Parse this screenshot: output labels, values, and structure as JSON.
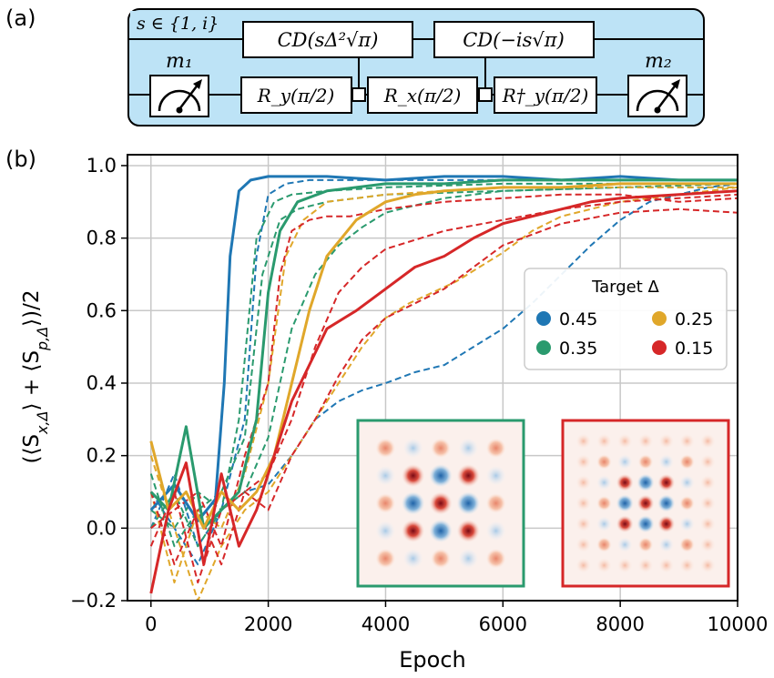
{
  "panel_a": {
    "label": "(a)",
    "s_set": "s ∈ {1, i}",
    "m1": "m₁",
    "m2": "m₂",
    "cd1": "CD(sΔ²√π)",
    "cd2": "CD(−is√π)",
    "ry": "R_y(π/2)",
    "rx": "R_x(π/2)",
    "rydag": "R†_y(π/2)"
  },
  "panel_b": {
    "label": "(b)"
  },
  "colors": {
    "blue": "#1f77b4",
    "green": "#2a9a6e",
    "yellow": "#e0a72a",
    "red": "#d62728",
    "circuit_bg": "#bde3f6"
  },
  "chart_data": {
    "type": "line",
    "xlabel": "Epoch",
    "ylabel": "(⟨S_{x,Δ}⟩ + ⟨S_{p,Δ}⟩)/2",
    "xlim": [
      -400,
      10000
    ],
    "ylim": [
      -0.2,
      1.03
    ],
    "xticks": [
      0,
      2000,
      4000,
      6000,
      8000,
      10000
    ],
    "xtick_labels": [
      "0",
      "2000",
      "4000",
      "6000",
      "8000",
      "10000"
    ],
    "yticks": [
      -0.2,
      0.0,
      0.2,
      0.4,
      0.6,
      0.8,
      1.0
    ],
    "ytick_labels": [
      "−0.2",
      "0.0",
      "0.2",
      "0.4",
      "0.6",
      "0.8",
      "1.0"
    ],
    "grid": true,
    "legend": {
      "title": "Target Δ",
      "placement": "center-right",
      "entries": [
        "0.45",
        "0.35",
        "0.25",
        "0.15"
      ]
    },
    "series": [
      {
        "name": "0.45",
        "style": "solid",
        "x": [
          0,
          400,
          800,
          1100,
          1250,
          1350,
          1500,
          1700,
          2000,
          3000,
          4000,
          5000,
          6000,
          7000,
          8000,
          9000,
          10000
        ],
        "y": [
          0.05,
          0.12,
          0.02,
          0.08,
          0.4,
          0.75,
          0.93,
          0.96,
          0.97,
          0.97,
          0.96,
          0.97,
          0.97,
          0.96,
          0.97,
          0.96,
          0.96
        ]
      },
      {
        "name": "0.35",
        "style": "solid",
        "x": [
          0,
          300,
          600,
          900,
          1200,
          1500,
          1800,
          2000,
          2200,
          2500,
          3000,
          4000,
          5000,
          6000,
          8000,
          10000
        ],
        "y": [
          0.1,
          0.05,
          0.28,
          0.0,
          0.05,
          0.1,
          0.3,
          0.65,
          0.82,
          0.9,
          0.93,
          0.95,
          0.95,
          0.96,
          0.96,
          0.96
        ]
      },
      {
        "name": "0.25",
        "style": "solid",
        "x": [
          0,
          300,
          600,
          900,
          1200,
          1500,
          1800,
          2100,
          2400,
          2700,
          3000,
          3500,
          4000,
          4500,
          5000,
          6000,
          7000,
          8000,
          10000
        ],
        "y": [
          0.24,
          0.05,
          0.1,
          0.0,
          0.1,
          0.05,
          0.1,
          0.2,
          0.4,
          0.6,
          0.75,
          0.85,
          0.9,
          0.92,
          0.93,
          0.94,
          0.94,
          0.95,
          0.95
        ]
      },
      {
        "name": "0.15",
        "style": "solid",
        "x": [
          0,
          300,
          600,
          900,
          1200,
          1500,
          1800,
          2100,
          2400,
          2700,
          3000,
          3500,
          4000,
          4500,
          5000,
          5500,
          6000,
          6500,
          7000,
          7500,
          8000,
          9000,
          10000
        ],
        "y": [
          -0.18,
          0.05,
          0.18,
          -0.1,
          0.15,
          -0.05,
          0.05,
          0.2,
          0.35,
          0.45,
          0.55,
          0.6,
          0.66,
          0.72,
          0.75,
          0.8,
          0.84,
          0.86,
          0.88,
          0.9,
          0.91,
          0.92,
          0.93
        ]
      },
      {
        "name": "0.45",
        "style": "dashed",
        "x": [
          0,
          400,
          800,
          1200,
          1600,
          1800,
          2000,
          2300,
          2700,
          3000,
          4000,
          5000,
          6000,
          8000,
          10000
        ],
        "y": [
          0.0,
          0.15,
          -0.05,
          0.05,
          0.3,
          0.75,
          0.92,
          0.95,
          0.96,
          0.96,
          0.96,
          0.96,
          0.96,
          0.96,
          0.96
        ]
      },
      {
        "name": "0.45",
        "style": "dashed",
        "x": [
          0,
          400,
          800,
          1200,
          1600,
          2000,
          2400,
          2800,
          3200,
          3600,
          4000,
          4500,
          5000,
          5500,
          6000,
          6500,
          7000,
          7500,
          8000,
          8500,
          9000,
          9500,
          10000
        ],
        "y": [
          0.1,
          0.0,
          -0.1,
          0.05,
          0.1,
          0.12,
          0.2,
          0.3,
          0.35,
          0.38,
          0.4,
          0.43,
          0.45,
          0.5,
          0.55,
          0.62,
          0.7,
          0.78,
          0.85,
          0.9,
          0.92,
          0.94,
          0.95
        ]
      },
      {
        "name": "0.35",
        "style": "dashed",
        "x": [
          0,
          400,
          800,
          1200,
          1500,
          1800,
          2100,
          2400,
          3000,
          4000,
          6000,
          8000,
          10000
        ],
        "y": [
          0.05,
          0.0,
          0.1,
          0.05,
          0.3,
          0.8,
          0.9,
          0.92,
          0.93,
          0.94,
          0.95,
          0.95,
          0.95
        ]
      },
      {
        "name": "0.35",
        "style": "dashed",
        "x": [
          0,
          400,
          800,
          1200,
          1600,
          1900,
          2200,
          2500,
          3000,
          4000,
          6000,
          8000,
          10000
        ],
        "y": [
          0.15,
          -0.05,
          0.05,
          0.1,
          0.25,
          0.7,
          0.85,
          0.88,
          0.9,
          0.92,
          0.93,
          0.94,
          0.94
        ]
      },
      {
        "name": "0.35",
        "style": "dashed",
        "x": [
          0,
          400,
          800,
          1200,
          1600,
          2000,
          2400,
          2800,
          3200,
          3600,
          4000,
          5000,
          6000,
          8000,
          10000
        ],
        "y": [
          0.0,
          0.1,
          -0.05,
          0.05,
          0.1,
          0.25,
          0.55,
          0.7,
          0.78,
          0.83,
          0.87,
          0.91,
          0.93,
          0.94,
          0.95
        ]
      },
      {
        "name": "0.25",
        "style": "dashed",
        "x": [
          0,
          400,
          800,
          1200,
          1600,
          2000,
          2300,
          2600,
          3000,
          3500,
          4000,
          5000,
          6000,
          8000,
          10000
        ],
        "y": [
          0.1,
          -0.15,
          0.05,
          0.0,
          0.15,
          0.4,
          0.75,
          0.85,
          0.9,
          0.91,
          0.92,
          0.93,
          0.94,
          0.94,
          0.94
        ]
      },
      {
        "name": "0.25",
        "style": "dashed",
        "x": [
          0,
          400,
          800,
          1200,
          1600,
          2000,
          2400,
          2800,
          3200,
          3600,
          4000,
          4400,
          4800,
          5200,
          5600,
          6000,
          6500,
          7000,
          8000,
          9000,
          10000
        ],
        "y": [
          0.2,
          0.0,
          -0.2,
          -0.05,
          0.05,
          0.1,
          0.2,
          0.3,
          0.4,
          0.5,
          0.58,
          0.62,
          0.65,
          0.68,
          0.72,
          0.76,
          0.82,
          0.86,
          0.9,
          0.92,
          0.94
        ]
      },
      {
        "name": "0.15",
        "style": "dashed",
        "x": [
          0,
          400,
          800,
          1200,
          1600,
          2000,
          2400,
          2800,
          3200,
          3600,
          4000,
          5000,
          6000,
          7000,
          8000,
          9000,
          10000
        ],
        "y": [
          -0.05,
          0.1,
          -0.15,
          0.05,
          0.1,
          0.15,
          0.3,
          0.5,
          0.65,
          0.72,
          0.77,
          0.82,
          0.85,
          0.88,
          0.9,
          0.91,
          0.92
        ]
      },
      {
        "name": "0.15",
        "style": "dashed",
        "x": [
          0,
          400,
          800,
          1200,
          1600,
          2000,
          2400,
          2800,
          3200,
          3600,
          4000,
          4500,
          5000,
          5500,
          6000,
          7000,
          8000,
          9000,
          10000
        ],
        "y": [
          0.1,
          -0.1,
          0.05,
          -0.1,
          0.1,
          0.05,
          0.2,
          0.3,
          0.42,
          0.52,
          0.58,
          0.62,
          0.66,
          0.72,
          0.78,
          0.84,
          0.87,
          0.88,
          0.87
        ]
      },
      {
        "name": "0.15",
        "style": "dashed",
        "x": [
          0,
          400,
          800,
          1200,
          1600,
          2000,
          2200,
          2400,
          2700,
          3000,
          3400,
          4000,
          5000,
          6000,
          7000,
          8000,
          9000,
          10000
        ],
        "y": [
          0.0,
          0.05,
          0.1,
          -0.05,
          0.2,
          0.4,
          0.7,
          0.82,
          0.85,
          0.86,
          0.86,
          0.88,
          0.9,
          0.91,
          0.92,
          0.92,
          0.9,
          0.91
        ]
      }
    ],
    "insets": [
      {
        "border_color": "green",
        "grid": 5
      },
      {
        "border_color": "red",
        "grid": 7
      }
    ]
  }
}
